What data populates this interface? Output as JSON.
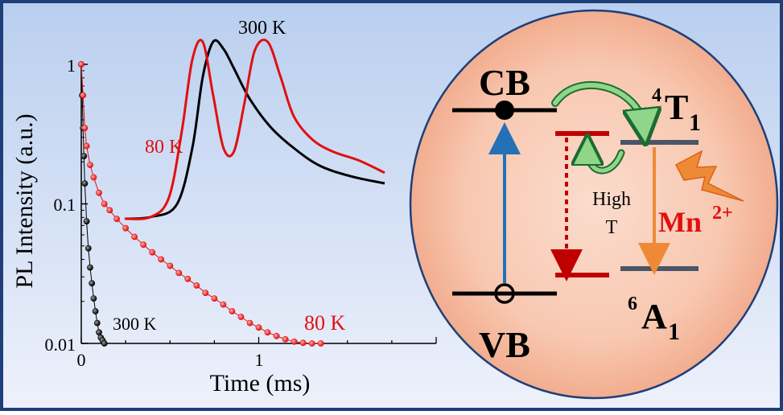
{
  "colors": {
    "frame": "#1f3f7a",
    "bg_top": "#b9cfef",
    "bg_bottom": "#eef1fb",
    "circle_center": "#fbdccd",
    "circle_edge": "#f2ad8f",
    "red": "#e01010",
    "dark_red": "#c00000",
    "blue": "#2471b8",
    "gray_level": "#4a5566",
    "orange": "#ee8a35",
    "green": "#1d9a49"
  },
  "decay_plot": {
    "ylabel": "PL Intensity (a.u.)",
    "xlabel": "Time (ms)",
    "y_tick_labels": [
      "1",
      "0.1",
      "0.01"
    ],
    "x_tick_labels": [
      "0",
      "1"
    ],
    "label_300K": "300 K",
    "label_80K": "80 K"
  },
  "inset_spectrum": {
    "label_300K": "300 K",
    "label_80K": "80 K"
  },
  "energy_diagram": {
    "cb": "CB",
    "vb": "VB",
    "high_t_line1": "High",
    "high_t_line2": "T",
    "t1_superscript": "4",
    "t1_letter": "T",
    "t1_subscript": "1",
    "a1_superscript": "6",
    "a1_letter": "A",
    "a1_subscript": "1",
    "mn": "Mn",
    "mn_charge": "2+",
    "lightning_icon": "lightning-bolt-icon",
    "green_arrow_icon": "curved-arrow-icon"
  },
  "chart_data": {
    "type": "scatter",
    "title": "",
    "xlabel": "Time (ms)",
    "ylabel": "PL Intensity (a.u.)",
    "xlim": [
      0,
      2
    ],
    "ylim": [
      0.01,
      1
    ],
    "yscale": "log",
    "x_ticks": [
      0,
      1
    ],
    "y_ticks": [
      1,
      0.1,
      0.01
    ],
    "series": [
      {
        "name": "300 K",
        "color": "#000000",
        "x": [
          0.0,
          0.005,
          0.01,
          0.015,
          0.02,
          0.03,
          0.04,
          0.05,
          0.06,
          0.07,
          0.08,
          0.09,
          0.1,
          0.11,
          0.12,
          0.13
        ],
        "y": [
          1.0,
          0.6,
          0.35,
          0.22,
          0.14,
          0.075,
          0.048,
          0.035,
          0.027,
          0.021,
          0.017,
          0.014,
          0.012,
          0.011,
          0.0105,
          0.01
        ]
      },
      {
        "name": "80 K",
        "color": "#e01010",
        "x": [
          0.0,
          0.01,
          0.02,
          0.03,
          0.05,
          0.07,
          0.1,
          0.13,
          0.16,
          0.2,
          0.25,
          0.3,
          0.35,
          0.4,
          0.45,
          0.5,
          0.55,
          0.6,
          0.65,
          0.7,
          0.75,
          0.8,
          0.85,
          0.9,
          0.95,
          1.0,
          1.05,
          1.1,
          1.15,
          1.2,
          1.25,
          1.3,
          1.35
        ],
        "y": [
          1.0,
          0.6,
          0.35,
          0.26,
          0.19,
          0.155,
          0.12,
          0.1,
          0.09,
          0.078,
          0.067,
          0.058,
          0.051,
          0.045,
          0.04,
          0.036,
          0.032,
          0.029,
          0.026,
          0.023,
          0.021,
          0.019,
          0.017,
          0.0155,
          0.014,
          0.013,
          0.012,
          0.0113,
          0.0107,
          0.0103,
          0.0101,
          0.01,
          0.01
        ]
      }
    ],
    "inset": {
      "type": "line",
      "series": [
        {
          "name": "300 K",
          "color": "#000000",
          "x": [
            0.0,
            0.1,
            0.2,
            0.26,
            0.3,
            0.34,
            0.38,
            0.42,
            0.48,
            0.56,
            0.65,
            0.75,
            0.87,
            1.0
          ],
          "y": [
            0.0,
            0.01,
            0.08,
            0.4,
            0.8,
            1.0,
            0.96,
            0.85,
            0.68,
            0.52,
            0.4,
            0.3,
            0.24,
            0.2
          ]
        },
        {
          "name": "80 K",
          "color": "#e01010",
          "x": [
            0.0,
            0.1,
            0.17,
            0.22,
            0.26,
            0.3,
            0.34,
            0.38,
            0.42,
            0.46,
            0.5,
            0.55,
            0.6,
            0.65,
            0.72,
            0.8,
            0.9,
            1.0
          ],
          "y": [
            0.0,
            0.01,
            0.12,
            0.5,
            0.9,
            1.0,
            0.7,
            0.4,
            0.38,
            0.65,
            0.95,
            1.0,
            0.8,
            0.58,
            0.45,
            0.38,
            0.33,
            0.26
          ]
        }
      ]
    }
  }
}
